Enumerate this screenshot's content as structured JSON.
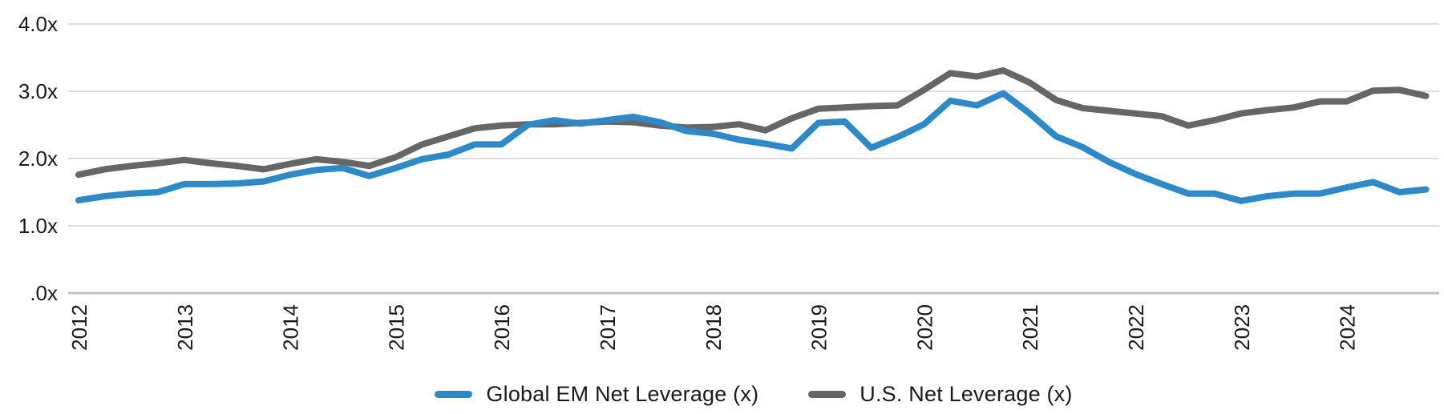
{
  "chart_data": {
    "type": "line",
    "frequency": "quarterly",
    "x_labels": [
      "2012",
      "2013",
      "2014",
      "2015",
      "2016",
      "2017",
      "2018",
      "2019",
      "2020",
      "2021",
      "2022",
      "2023",
      "2024"
    ],
    "y_ticks": [
      "4.0x",
      "3.0x",
      "2.0x",
      "1.0x",
      ".0x"
    ],
    "y_tick_values": [
      4.0,
      3.0,
      2.0,
      1.0,
      0.0
    ],
    "ylim": [
      0.0,
      4.0
    ],
    "grid": "horizontal",
    "legend_position": "bottom-center",
    "series": [
      {
        "name": "U.S. Net Leverage (x)",
        "color": "#666666",
        "values": [
          1.76,
          1.84,
          1.89,
          1.93,
          1.98,
          1.93,
          1.89,
          1.84,
          1.92,
          1.99,
          1.95,
          1.89,
          2.02,
          2.21,
          2.33,
          2.45,
          2.49,
          2.51,
          2.51,
          2.53,
          2.55,
          2.54,
          2.49,
          2.46,
          2.47,
          2.51,
          2.42,
          2.6,
          2.74,
          2.76,
          2.78,
          2.79,
          3.02,
          3.27,
          3.22,
          3.31,
          3.13,
          2.87,
          2.75,
          2.71,
          2.67,
          2.63,
          2.49,
          2.57,
          2.67,
          2.72,
          2.76,
          2.85,
          2.85,
          3.01,
          3.02,
          2.93
        ]
      },
      {
        "name": "Global EM Net Leverage (x)",
        "color": "#2E89C8",
        "values": [
          1.38,
          1.44,
          1.48,
          1.5,
          1.62,
          1.62,
          1.63,
          1.66,
          1.76,
          1.83,
          1.86,
          1.74,
          1.86,
          1.99,
          2.06,
          2.21,
          2.21,
          2.5,
          2.57,
          2.52,
          2.57,
          2.62,
          2.54,
          2.41,
          2.37,
          2.28,
          2.22,
          2.15,
          2.53,
          2.55,
          2.16,
          2.32,
          2.51,
          2.86,
          2.79,
          2.97,
          2.67,
          2.33,
          2.17,
          1.95,
          1.77,
          1.62,
          1.48,
          1.48,
          1.37,
          1.44,
          1.48,
          1.48,
          1.57,
          1.65,
          1.5,
          1.54
        ]
      }
    ],
    "legend_order": [
      1,
      0
    ]
  },
  "colors": {
    "gridline": "#dddddd",
    "baseline": "#c3c3c3",
    "tick_text": "#1a1a1a",
    "background": "#ffffff"
  }
}
